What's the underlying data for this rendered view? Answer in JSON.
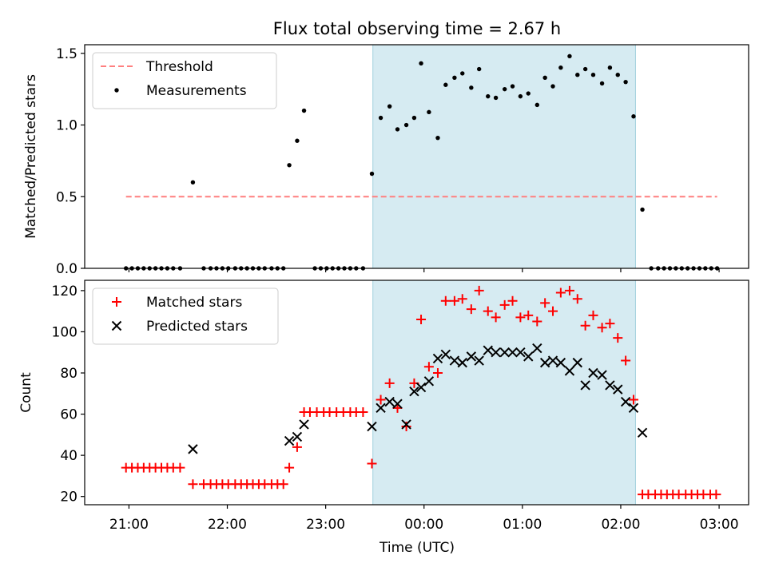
{
  "chart_data": {
    "type": "multi-panel",
    "title": "Flux total observing time = 2.67 h",
    "xlabel": "Time (UTC)",
    "x_unit": "hours (UTC), values past 24 denote the following day",
    "xlim": [
      20.55,
      27.3
    ],
    "x_ticks": [
      {
        "value": 21,
        "label": "21:00"
      },
      {
        "value": 22,
        "label": "22:00"
      },
      {
        "value": 23,
        "label": "23:00"
      },
      {
        "value": 24,
        "label": "00:00"
      },
      {
        "value": 25,
        "label": "01:00"
      },
      {
        "value": 26,
        "label": "02:00"
      },
      {
        "value": 27,
        "label": "03:00"
      }
    ],
    "observing_window": {
      "start": 23.48,
      "end": 26.15,
      "color": "#add8e6"
    },
    "panels": [
      {
        "type": "scatter",
        "ylabel": "Matched/Predicted stars",
        "ylim": [
          0,
          1.56
        ],
        "y_ticks": [
          {
            "value": 0,
            "label": "0.0"
          },
          {
            "value": 0.5,
            "label": "0.5"
          },
          {
            "value": 1,
            "label": "1.0"
          },
          {
            "value": 1.5,
            "label": "1.5"
          }
        ],
        "threshold": {
          "name": "Threshold",
          "value": 0.5,
          "x_range": [
            20.97,
            26.98
          ],
          "color": "#ff7f7f"
        },
        "legend_position": "top-left",
        "series": [
          {
            "name": "Measurements",
            "color": "#000000",
            "marker": "dot",
            "points": [
              [
                20.97,
                0
              ],
              [
                21.03,
                0
              ],
              [
                21.09,
                0
              ],
              [
                21.15,
                0
              ],
              [
                21.21,
                0
              ],
              [
                21.27,
                0
              ],
              [
                21.33,
                0
              ],
              [
                21.39,
                0
              ],
              [
                21.45,
                0
              ],
              [
                21.52,
                0
              ],
              [
                21.65,
                0.6
              ],
              [
                21.76,
                0
              ],
              [
                21.83,
                0
              ],
              [
                21.89,
                0
              ],
              [
                21.95,
                0
              ],
              [
                22.01,
                0
              ],
              [
                22.08,
                0
              ],
              [
                22.14,
                0
              ],
              [
                22.2,
                0
              ],
              [
                22.26,
                0
              ],
              [
                22.32,
                0
              ],
              [
                22.38,
                0
              ],
              [
                22.45,
                0
              ],
              [
                22.51,
                0
              ],
              [
                22.57,
                0
              ],
              [
                22.63,
                0.72
              ],
              [
                22.71,
                0.89
              ],
              [
                22.78,
                1.1
              ],
              [
                22.89,
                0
              ],
              [
                22.95,
                0
              ],
              [
                23.01,
                0
              ],
              [
                23.07,
                0
              ],
              [
                23.13,
                0
              ],
              [
                23.19,
                0
              ],
              [
                23.25,
                0
              ],
              [
                23.31,
                0
              ],
              [
                23.38,
                0
              ],
              [
                23.47,
                0.66
              ],
              [
                23.56,
                1.05
              ],
              [
                23.65,
                1.13
              ],
              [
                23.73,
                0.97
              ],
              [
                23.82,
                1.0
              ],
              [
                23.9,
                1.05
              ],
              [
                23.97,
                1.43
              ],
              [
                24.05,
                1.09
              ],
              [
                24.14,
                0.91
              ],
              [
                24.22,
                1.28
              ],
              [
                24.31,
                1.33
              ],
              [
                24.39,
                1.36
              ],
              [
                24.48,
                1.26
              ],
              [
                24.56,
                1.39
              ],
              [
                24.65,
                1.2
              ],
              [
                24.73,
                1.19
              ],
              [
                24.82,
                1.25
              ],
              [
                24.9,
                1.27
              ],
              [
                24.98,
                1.2
              ],
              [
                25.06,
                1.22
              ],
              [
                25.15,
                1.14
              ],
              [
                25.23,
                1.33
              ],
              [
                25.31,
                1.27
              ],
              [
                25.39,
                1.4
              ],
              [
                25.48,
                1.48
              ],
              [
                25.56,
                1.35
              ],
              [
                25.64,
                1.39
              ],
              [
                25.72,
                1.35
              ],
              [
                25.81,
                1.29
              ],
              [
                25.89,
                1.4
              ],
              [
                25.97,
                1.35
              ],
              [
                26.05,
                1.3
              ],
              [
                26.13,
                1.06
              ],
              [
                26.22,
                0.41
              ],
              [
                26.31,
                0
              ],
              [
                26.38,
                0
              ],
              [
                26.44,
                0
              ],
              [
                26.5,
                0
              ],
              [
                26.56,
                0
              ],
              [
                26.62,
                0
              ],
              [
                26.68,
                0
              ],
              [
                26.74,
                0
              ],
              [
                26.8,
                0
              ],
              [
                26.86,
                0
              ],
              [
                26.92,
                0
              ],
              [
                26.98,
                0
              ]
            ]
          }
        ]
      },
      {
        "type": "scatter",
        "ylabel": "Count",
        "ylim": [
          16,
          125
        ],
        "y_ticks": [
          {
            "value": 20,
            "label": "20"
          },
          {
            "value": 40,
            "label": "40"
          },
          {
            "value": 60,
            "label": "60"
          },
          {
            "value": 80,
            "label": "80"
          },
          {
            "value": 100,
            "label": "100"
          },
          {
            "value": 120,
            "label": "120"
          }
        ],
        "legend_position": "top-left",
        "series": [
          {
            "name": "Matched stars",
            "color": "#ff0000",
            "marker": "plus",
            "points": [
              [
                20.97,
                34
              ],
              [
                21.03,
                34
              ],
              [
                21.09,
                34
              ],
              [
                21.15,
                34
              ],
              [
                21.21,
                34
              ],
              [
                21.27,
                34
              ],
              [
                21.33,
                34
              ],
              [
                21.39,
                34
              ],
              [
                21.45,
                34
              ],
              [
                21.52,
                34
              ],
              [
                21.65,
                26
              ],
              [
                21.76,
                26
              ],
              [
                21.83,
                26
              ],
              [
                21.89,
                26
              ],
              [
                21.95,
                26
              ],
              [
                22.01,
                26
              ],
              [
                22.08,
                26
              ],
              [
                22.14,
                26
              ],
              [
                22.2,
                26
              ],
              [
                22.26,
                26
              ],
              [
                22.32,
                26
              ],
              [
                22.38,
                26
              ],
              [
                22.45,
                26
              ],
              [
                22.51,
                26
              ],
              [
                22.57,
                26
              ],
              [
                22.63,
                34
              ],
              [
                22.71,
                44
              ],
              [
                22.78,
                61
              ],
              [
                22.84,
                61
              ],
              [
                22.91,
                61
              ],
              [
                22.98,
                61
              ],
              [
                23.04,
                61
              ],
              [
                23.11,
                61
              ],
              [
                23.18,
                61
              ],
              [
                23.25,
                61
              ],
              [
                23.31,
                61
              ],
              [
                23.38,
                61
              ],
              [
                23.47,
                36
              ],
              [
                23.56,
                67
              ],
              [
                23.65,
                75
              ],
              [
                23.73,
                63
              ],
              [
                23.82,
                54
              ],
              [
                23.9,
                75
              ],
              [
                23.97,
                106
              ],
              [
                24.05,
                83
              ],
              [
                24.14,
                80
              ],
              [
                24.22,
                115
              ],
              [
                24.31,
                115
              ],
              [
                24.39,
                116
              ],
              [
                24.48,
                111
              ],
              [
                24.56,
                120
              ],
              [
                24.65,
                110
              ],
              [
                24.73,
                107
              ],
              [
                24.82,
                113
              ],
              [
                24.9,
                115
              ],
              [
                24.98,
                107
              ],
              [
                25.06,
                108
              ],
              [
                25.15,
                105
              ],
              [
                25.23,
                114
              ],
              [
                25.31,
                110
              ],
              [
                25.39,
                119
              ],
              [
                25.48,
                120
              ],
              [
                25.56,
                116
              ],
              [
                25.64,
                103
              ],
              [
                25.72,
                108
              ],
              [
                25.81,
                102
              ],
              [
                25.89,
                104
              ],
              [
                25.97,
                97
              ],
              [
                26.05,
                86
              ],
              [
                26.13,
                67
              ],
              [
                26.22,
                21
              ],
              [
                26.28,
                21
              ],
              [
                26.35,
                21
              ],
              [
                26.41,
                21
              ],
              [
                26.47,
                21
              ],
              [
                26.53,
                21
              ],
              [
                26.59,
                21
              ],
              [
                26.66,
                21
              ],
              [
                26.72,
                21
              ],
              [
                26.78,
                21
              ],
              [
                26.84,
                21
              ],
              [
                26.91,
                21
              ],
              [
                26.97,
                21
              ]
            ]
          },
          {
            "name": "Predicted stars",
            "color": "#000000",
            "marker": "x",
            "points": [
              [
                21.65,
                43
              ],
              [
                22.63,
                47
              ],
              [
                22.71,
                49
              ],
              [
                22.78,
                55
              ],
              [
                23.47,
                54
              ],
              [
                23.56,
                63
              ],
              [
                23.65,
                66
              ],
              [
                23.73,
                65
              ],
              [
                23.82,
                55
              ],
              [
                23.9,
                71
              ],
              [
                23.97,
                73
              ],
              [
                24.05,
                76
              ],
              [
                24.14,
                87
              ],
              [
                24.22,
                89
              ],
              [
                24.31,
                86
              ],
              [
                24.39,
                85
              ],
              [
                24.48,
                88
              ],
              [
                24.56,
                86
              ],
              [
                24.65,
                91
              ],
              [
                24.73,
                90
              ],
              [
                24.82,
                90
              ],
              [
                24.9,
                90
              ],
              [
                24.98,
                90
              ],
              [
                25.06,
                88
              ],
              [
                25.15,
                92
              ],
              [
                25.23,
                85
              ],
              [
                25.31,
                86
              ],
              [
                25.39,
                85
              ],
              [
                25.48,
                81
              ],
              [
                25.56,
                85
              ],
              [
                25.64,
                74
              ],
              [
                25.72,
                80
              ],
              [
                25.81,
                79
              ],
              [
                25.89,
                74
              ],
              [
                25.97,
                72
              ],
              [
                26.05,
                66
              ],
              [
                26.13,
                63
              ],
              [
                26.22,
                51
              ]
            ]
          }
        ]
      }
    ]
  }
}
